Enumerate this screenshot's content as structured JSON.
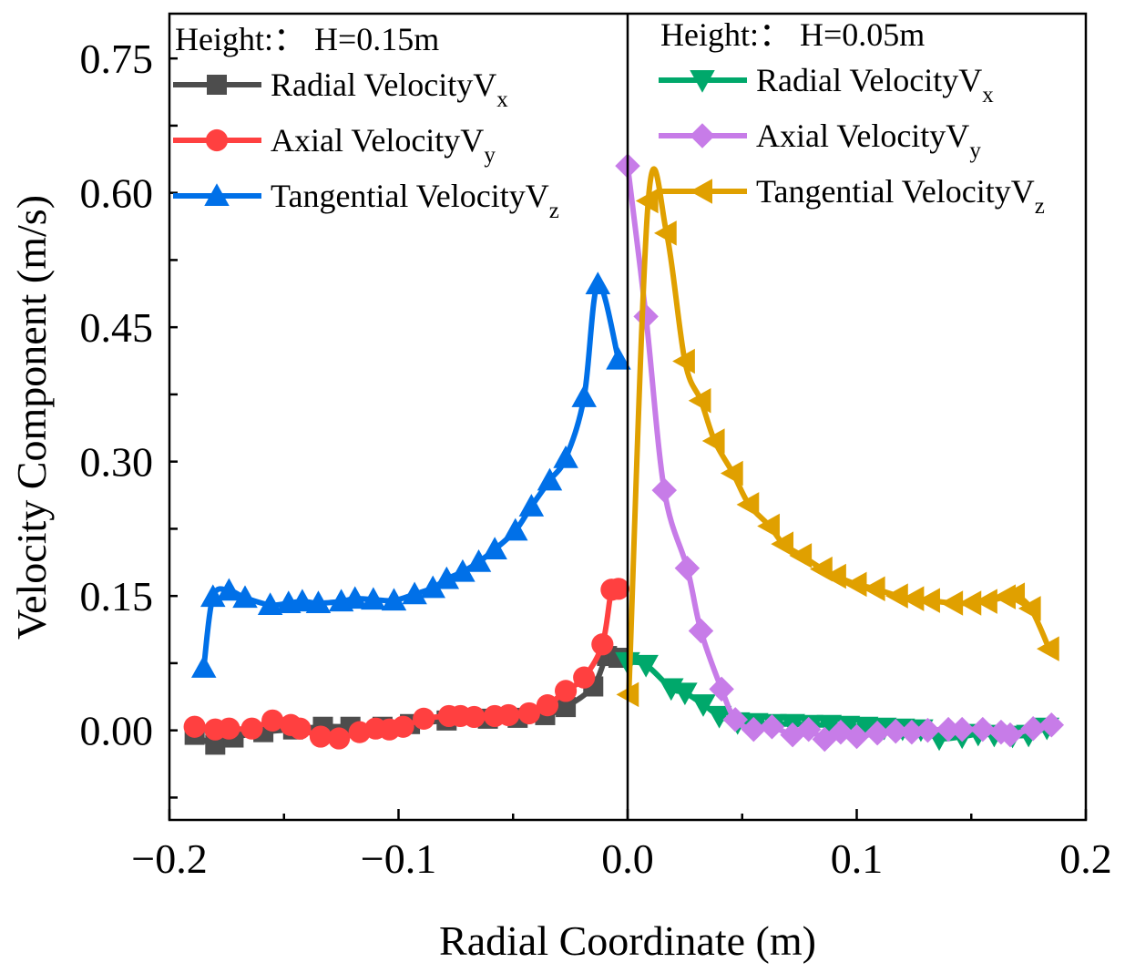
{
  "chart_data": {
    "type": "line",
    "xlabel": "Radial Coordinate (m)",
    "ylabel": "Velocity Component (m/s)",
    "xlim": [
      -0.2,
      0.2
    ],
    "ylim": [
      -0.1,
      0.8
    ],
    "xticks": [
      -0.2,
      -0.1,
      0.0,
      0.1,
      0.2
    ],
    "xtick_labels": [
      "−0.2",
      "−0.1",
      "0.0",
      "0.1",
      "0.2"
    ],
    "yticks": [
      0.0,
      0.15,
      0.3,
      0.45,
      0.6,
      0.75
    ],
    "ytick_labels": [
      "0.00",
      "0.15",
      "0.30",
      "0.45",
      "0.60",
      "0.75"
    ],
    "grid": false,
    "divider_x": 0.0,
    "legends": [
      {
        "title": "Height:： H=0.15m",
        "placement": "top-left"
      },
      {
        "title": "Height:： H=0.05m",
        "placement": "top-right"
      }
    ],
    "series": [
      {
        "legend": 0,
        "name_main": "Radial VelocityV",
        "name_sub": "x",
        "color": "#4d4d4d",
        "marker": "square",
        "x": [
          -0.189,
          -0.18,
          -0.172,
          -0.159,
          -0.146,
          -0.133,
          -0.121,
          -0.107,
          -0.095,
          -0.079,
          -0.061,
          -0.048,
          -0.036,
          -0.027,
          -0.015,
          -0.009,
          -0.004
        ],
        "y": [
          -0.005,
          -0.016,
          -0.008,
          -0.002,
          0.001,
          0.004,
          0.004,
          0.004,
          0.007,
          0.011,
          0.013,
          0.014,
          0.017,
          0.026,
          0.049,
          0.083,
          0.081
        ]
      },
      {
        "legend": 0,
        "name_main": "Axial VelocityV",
        "name_sub": "y",
        "color": "#ff4040",
        "marker": "circle",
        "x": [
          -0.189,
          -0.18,
          -0.174,
          -0.164,
          -0.155,
          -0.147,
          -0.143,
          -0.134,
          -0.126,
          -0.117,
          -0.11,
          -0.104,
          -0.098,
          -0.089,
          -0.078,
          -0.073,
          -0.067,
          -0.058,
          -0.052,
          -0.043,
          -0.035,
          -0.027,
          -0.019,
          -0.011,
          -0.007,
          -0.004
        ],
        "y": [
          0.004,
          0.001,
          0.002,
          0.002,
          0.011,
          0.006,
          0.002,
          -0.007,
          -0.009,
          -0.002,
          0.002,
          0.001,
          0.004,
          0.013,
          0.016,
          0.016,
          0.015,
          0.016,
          0.017,
          0.019,
          0.028,
          0.044,
          0.059,
          0.096,
          0.157,
          0.158
        ]
      },
      {
        "legend": 0,
        "name_main": "Tangential VelocityV",
        "name_sub": "z",
        "color": "#0070e8",
        "marker": "triangle-up",
        "x": [
          -0.185,
          -0.181,
          -0.174,
          -0.167,
          -0.156,
          -0.148,
          -0.142,
          -0.135,
          -0.125,
          -0.119,
          -0.111,
          -0.102,
          -0.093,
          -0.085,
          -0.079,
          -0.072,
          -0.065,
          -0.058,
          -0.049,
          -0.042,
          -0.034,
          -0.027,
          -0.019,
          -0.013,
          -0.004
        ],
        "y": [
          0.07,
          0.149,
          0.156,
          0.148,
          0.14,
          0.142,
          0.144,
          0.142,
          0.144,
          0.147,
          0.146,
          0.145,
          0.152,
          0.159,
          0.169,
          0.177,
          0.188,
          0.202,
          0.223,
          0.25,
          0.279,
          0.304,
          0.372,
          0.498,
          0.414
        ]
      },
      {
        "legend": 1,
        "name_main": "Radial VelocityV",
        "name_sub": "x",
        "color": "#00a86b",
        "marker": "triangle-down",
        "x": [
          0.0,
          0.008,
          0.019,
          0.025,
          0.033,
          0.04,
          0.048,
          0.056,
          0.064,
          0.072,
          0.08,
          0.088,
          0.096,
          0.104,
          0.112,
          0.12,
          0.128,
          0.136,
          0.146,
          0.153,
          0.16,
          0.168,
          0.175,
          0.183
        ],
        "y": [
          0.076,
          0.073,
          0.047,
          0.042,
          0.029,
          0.016,
          0.009,
          0.008,
          0.007,
          0.007,
          0.006,
          0.006,
          0.005,
          0.004,
          0.003,
          0.002,
          0.001,
          -0.009,
          -0.007,
          -0.004,
          -0.005,
          -0.006,
          -0.005,
          0.003
        ]
      },
      {
        "legend": 1,
        "name_main": "Axial VelocityV",
        "name_sub": "y",
        "color": "#c77ce8",
        "marker": "diamond",
        "x": [
          0.0,
          0.008,
          0.016,
          0.026,
          0.032,
          0.041,
          0.047,
          0.055,
          0.063,
          0.072,
          0.079,
          0.086,
          0.093,
          0.1,
          0.109,
          0.117,
          0.124,
          0.131,
          0.14,
          0.146,
          0.155,
          0.163,
          0.167,
          0.177,
          0.185
        ],
        "y": [
          0.63,
          0.462,
          0.268,
          0.181,
          0.111,
          0.046,
          0.012,
          0.001,
          0.004,
          -0.005,
          0.001,
          -0.01,
          -0.002,
          -0.007,
          -0.003,
          -0.001,
          -0.002,
          0.0,
          0.001,
          0.001,
          0.001,
          -0.002,
          -0.005,
          0.002,
          0.006
        ]
      },
      {
        "legend": 1,
        "name_main": "Tangential VelocityV",
        "name_sub": "z",
        "color": "#e0a000",
        "marker": "triangle-left",
        "x": [
          0.0005,
          0.009,
          0.017,
          0.025,
          0.032,
          0.038,
          0.046,
          0.053,
          0.062,
          0.068,
          0.076,
          0.085,
          0.091,
          0.1,
          0.108,
          0.118,
          0.125,
          0.132,
          0.142,
          0.15,
          0.157,
          0.165,
          0.169,
          0.176,
          0.184
        ],
        "y": [
          0.04,
          0.591,
          0.555,
          0.412,
          0.368,
          0.323,
          0.287,
          0.252,
          0.228,
          0.208,
          0.195,
          0.18,
          0.172,
          0.163,
          0.158,
          0.15,
          0.147,
          0.145,
          0.142,
          0.142,
          0.144,
          0.149,
          0.151,
          0.136,
          0.091
        ]
      }
    ]
  }
}
